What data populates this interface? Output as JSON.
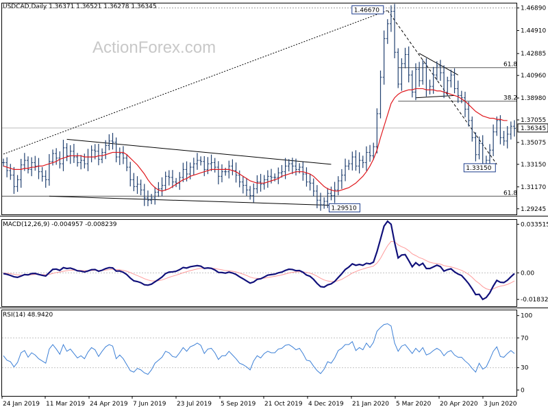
{
  "chart_data": {
    "type": "line",
    "watermark": "ActionForex.com",
    "price_panel": {
      "header": "USDCAD,Daily  1.36371 1.36521 1.36278 1.36345",
      "y_ticks": [
        "1.46890",
        "1.44910",
        "1.42885",
        "1.40960",
        "1.38980",
        "1.37055",
        "1.35075",
        "1.33150",
        "1.31170",
        "1.29245"
      ],
      "y_tick_values": [
        1.4689,
        1.4491,
        1.42885,
        1.4096,
        1.3898,
        1.37055,
        1.35075,
        1.3315,
        1.3117,
        1.29245
      ],
      "ylim": [
        1.2875,
        1.4735
      ],
      "last_price": "1.36345",
      "last_price_value": 1.36345,
      "high_label": "1.46670",
      "high_value": 1.4667,
      "low_label": "1.29510",
      "low_value": 1.2951,
      "recent_low_label": "1.33150",
      "recent_low_value": 1.3315,
      "fib_labels": [
        "61.8",
        "38.2",
        "61.8"
      ],
      "close_series": [
        1.333,
        1.326,
        1.322,
        1.312,
        1.318,
        1.331,
        1.335,
        1.327,
        1.333,
        1.33,
        1.325,
        1.321,
        1.318,
        1.334,
        1.341,
        1.337,
        1.332,
        1.346,
        1.339,
        1.343,
        1.338,
        1.333,
        1.335,
        1.332,
        1.338,
        1.344,
        1.343,
        1.336,
        1.342,
        1.348,
        1.352,
        1.351,
        1.338,
        1.341,
        1.337,
        1.329,
        1.318,
        1.312,
        1.314,
        1.309,
        1.302,
        1.3,
        1.302,
        1.307,
        1.31,
        1.313,
        1.321,
        1.32,
        1.316,
        1.315,
        1.32,
        1.327,
        1.323,
        1.329,
        1.332,
        1.335,
        1.334,
        1.327,
        1.332,
        1.333,
        1.329,
        1.321,
        1.325,
        1.325,
        1.33,
        1.326,
        1.322,
        1.316,
        1.313,
        1.309,
        1.304,
        1.31,
        1.316,
        1.314,
        1.318,
        1.321,
        1.32,
        1.32,
        1.324,
        1.325,
        1.33,
        1.332,
        1.33,
        1.327,
        1.329,
        1.323,
        1.316,
        1.315,
        1.308,
        1.3,
        1.296,
        1.299,
        1.306,
        1.304,
        1.309,
        1.317,
        1.322,
        1.33,
        1.332,
        1.338,
        1.33,
        1.335,
        1.333,
        1.342,
        1.339,
        1.347,
        1.376,
        1.408,
        1.442,
        1.455,
        1.466,
        1.43,
        1.402,
        1.42,
        1.428,
        1.41,
        1.395,
        1.415,
        1.405,
        1.42,
        1.397,
        1.4,
        1.41,
        1.418,
        1.412,
        1.395,
        1.405,
        1.41,
        1.398,
        1.392,
        1.39,
        1.38,
        1.37,
        1.355,
        1.34,
        1.35,
        1.332,
        1.335,
        1.344,
        1.36,
        1.37,
        1.355,
        1.352,
        1.358,
        1.365,
        1.363
      ],
      "ma_series": [
        1.33,
        1.329,
        1.328,
        1.327,
        1.327,
        1.327,
        1.328,
        1.328,
        1.329,
        1.329,
        1.33,
        1.33,
        1.331,
        1.332,
        1.333,
        1.334,
        1.336,
        1.337,
        1.338,
        1.339,
        1.339,
        1.339,
        1.339,
        1.338,
        1.338,
        1.338,
        1.338,
        1.339,
        1.339,
        1.34,
        1.341,
        1.342,
        1.342,
        1.342,
        1.342,
        1.34,
        1.337,
        1.334,
        1.331,
        1.327,
        1.323,
        1.318,
        1.314,
        1.311,
        1.309,
        1.308,
        1.309,
        1.31,
        1.312,
        1.314,
        1.316,
        1.318,
        1.319,
        1.321,
        1.322,
        1.323,
        1.324,
        1.325,
        1.326,
        1.327,
        1.327,
        1.327,
        1.327,
        1.327,
        1.327,
        1.326,
        1.325,
        1.323,
        1.321,
        1.319,
        1.317,
        1.316,
        1.315,
        1.315,
        1.315,
        1.316,
        1.317,
        1.318,
        1.319,
        1.321,
        1.322,
        1.323,
        1.324,
        1.325,
        1.325,
        1.325,
        1.324,
        1.323,
        1.321,
        1.318,
        1.315,
        1.312,
        1.31,
        1.309,
        1.308,
        1.308,
        1.309,
        1.31,
        1.311,
        1.313,
        1.315,
        1.318,
        1.321,
        1.325,
        1.33,
        1.336,
        1.344,
        1.355,
        1.365,
        1.375,
        1.385,
        1.39,
        1.393,
        1.395,
        1.396,
        1.397,
        1.397,
        1.398,
        1.398,
        1.398,
        1.397,
        1.397,
        1.397,
        1.396,
        1.396,
        1.395,
        1.394,
        1.393,
        1.392,
        1.391,
        1.389,
        1.387,
        1.384,
        1.381,
        1.378,
        1.376,
        1.374,
        1.373,
        1.372,
        1.372,
        1.371,
        1.371,
        1.37,
        1.37
      ],
      "trendlines": [
        {
          "from": [
            0,
            1.3405
          ],
          "to": [
            109,
            1.4667
          ],
          "style": "dotted"
        },
        {
          "from": [
            18,
            1.3535
          ],
          "to": [
            93,
            1.3315
          ],
          "style": "solid"
        },
        {
          "from": [
            13,
            1.3035
          ],
          "to": [
            97,
            1.2951
          ],
          "style": "solid"
        },
        {
          "from": [
            109,
            1.4667
          ],
          "to": [
            140,
            1.3315
          ],
          "style": "dashed"
        },
        {
          "from": [
            118,
            1.429
          ],
          "to": [
            129,
            1.41
          ],
          "style": "solid"
        },
        {
          "from": [
            117,
            1.39
          ],
          "to": [
            128,
            1.392
          ],
          "style": "solid"
        }
      ]
    },
    "macd_panel": {
      "header": "MACD(12,26,9) -0.004957 -0.008239",
      "y_ticks": [
        "0.033515",
        "0.00",
        "-0.018324"
      ],
      "y_tick_values": [
        0.033515,
        0.0,
        -0.018324
      ],
      "ylim": [
        -0.023,
        0.037
      ],
      "macd_series": [
        -0.0005,
        -0.001,
        -0.0018,
        -0.0027,
        -0.0031,
        -0.0022,
        -0.0012,
        -0.0014,
        -0.0005,
        -0.0004,
        -0.0011,
        -0.0017,
        -0.0022,
        0.0001,
        0.0024,
        0.0026,
        0.0017,
        0.0036,
        0.003,
        0.0033,
        0.0025,
        0.0014,
        0.0012,
        0.0006,
        0.0013,
        0.0022,
        0.0023,
        0.0011,
        0.0018,
        0.0029,
        0.0036,
        0.0034,
        0.0012,
        0.0013,
        0.0004,
        -0.0012,
        -0.0036,
        -0.0055,
        -0.006,
        -0.0068,
        -0.0082,
        -0.0085,
        -0.0078,
        -0.0062,
        -0.0046,
        -0.0029,
        -0.0005,
        0.0005,
        0.0007,
        0.0011,
        0.0022,
        0.0037,
        0.0033,
        0.0042,
        0.0046,
        0.005,
        0.0046,
        0.0031,
        0.0034,
        0.0031,
        0.002,
        0.0003,
        0.0002,
        -0.0002,
        0.0005,
        -0.0001,
        -0.0011,
        -0.0027,
        -0.0041,
        -0.0056,
        -0.0071,
        -0.0063,
        -0.0045,
        -0.0041,
        -0.0029,
        -0.0016,
        -0.0012,
        -0.0009,
        0.0,
        0.0005,
        0.0017,
        0.0025,
        0.0023,
        0.0015,
        0.0016,
        0.0004,
        -0.0015,
        -0.0024,
        -0.0045,
        -0.0073,
        -0.0095,
        -0.0098,
        -0.0083,
        -0.0076,
        -0.0059,
        -0.0032,
        -0.0006,
        0.0023,
        0.004,
        0.0062,
        0.0052,
        0.0058,
        0.0052,
        0.0066,
        0.0062,
        0.0074,
        0.0146,
        0.0233,
        0.0322,
        0.0356,
        0.0335,
        0.0209,
        0.0103,
        0.0123,
        0.0126,
        0.0085,
        0.0042,
        0.007,
        0.0051,
        0.0066,
        0.003,
        0.003,
        0.0041,
        0.0053,
        0.0043,
        0.0012,
        0.0022,
        0.0028,
        0.0007,
        -0.0008,
        -0.0018,
        -0.0045,
        -0.0074,
        -0.011,
        -0.015,
        -0.0148,
        -0.0183,
        -0.017,
        -0.0138,
        -0.0091,
        -0.0052,
        -0.0065,
        -0.0067,
        -0.0051,
        -0.0027,
        -0.0005
      ],
      "signal_series": [
        -0.0001,
        -0.0003,
        -0.0006,
        -0.001,
        -0.0014,
        -0.0016,
        -0.0015,
        -0.0015,
        -0.0013,
        -0.0011,
        -0.0011,
        -0.0012,
        -0.0014,
        -0.0011,
        -0.0004,
        0.0002,
        0.0005,
        0.0011,
        0.0015,
        0.0018,
        0.0019,
        0.0018,
        0.0017,
        0.0015,
        0.0015,
        0.0016,
        0.0018,
        0.0016,
        0.0017,
        0.0019,
        0.0022,
        0.0025,
        0.0022,
        0.0021,
        0.0017,
        0.0011,
        0.0002,
        -0.0009,
        -0.0019,
        -0.0029,
        -0.004,
        -0.0049,
        -0.0055,
        -0.0056,
        -0.0054,
        -0.0049,
        -0.004,
        -0.0031,
        -0.0023,
        -0.0016,
        -0.0008,
        0.0001,
        0.0008,
        0.0015,
        0.0021,
        0.0027,
        0.0031,
        0.0031,
        0.0032,
        0.0032,
        0.003,
        0.0025,
        0.0021,
        0.0016,
        0.0014,
        0.0011,
        0.0006,
        -0.0001,
        -0.0009,
        -0.0018,
        -0.0029,
        -0.0036,
        -0.0038,
        -0.0038,
        -0.0037,
        -0.0032,
        -0.0028,
        -0.0024,
        -0.0019,
        -0.0014,
        -0.0008,
        -0.0001,
        0.0004,
        0.0006,
        0.0008,
        0.0007,
        0.0003,
        -0.0002,
        -0.0011,
        -0.0023,
        -0.0037,
        -0.0049,
        -0.0056,
        -0.006,
        -0.006,
        -0.0054,
        -0.0045,
        -0.0031,
        -0.0017,
        -0.0001,
        0.0009,
        0.0019,
        0.0026,
        0.0034,
        0.004,
        0.0047,
        0.0067,
        0.01,
        0.0145,
        0.0187,
        0.0217,
        0.0215,
        0.0193,
        0.018,
        0.017,
        0.0153,
        0.0131,
        0.0119,
        0.0105,
        0.0097,
        0.0084,
        0.0073,
        0.0067,
        0.0064,
        0.006,
        0.005,
        0.0045,
        0.0041,
        0.0034,
        0.0026,
        0.0017,
        0.0005,
        -0.0011,
        -0.0031,
        -0.0055,
        -0.0073,
        -0.0095,
        -0.011,
        -0.0116,
        -0.0111,
        -0.0099,
        -0.0092,
        -0.0087,
        -0.008,
        -0.0069,
        -0.0056
      ]
    },
    "rsi_panel": {
      "header": "RSI(14) 48.9420",
      "y_ticks": [
        "100",
        "70",
        "30",
        "0"
      ],
      "y_tick_values": [
        100,
        70,
        30,
        0
      ],
      "levels": [
        70,
        30
      ],
      "ylim": [
        0,
        100
      ],
      "rsi_series": [
        46,
        40,
        38,
        31,
        37,
        50,
        53,
        44,
        50,
        47,
        42,
        39,
        36,
        55,
        61,
        55,
        48,
        61,
        52,
        55,
        49,
        43,
        46,
        42,
        51,
        57,
        54,
        45,
        52,
        58,
        61,
        59,
        42,
        47,
        42,
        34,
        26,
        24,
        29,
        27,
        23,
        21,
        27,
        36,
        40,
        44,
        52,
        50,
        45,
        44,
        50,
        57,
        52,
        58,
        60,
        63,
        60,
        49,
        55,
        56,
        50,
        41,
        46,
        46,
        52,
        47,
        42,
        36,
        34,
        31,
        27,
        39,
        46,
        43,
        49,
        52,
        50,
        50,
        55,
        56,
        60,
        61,
        58,
        54,
        56,
        49,
        40,
        39,
        32,
        26,
        22,
        28,
        38,
        36,
        43,
        53,
        56,
        61,
        61,
        65,
        53,
        57,
        54,
        63,
        57,
        64,
        79,
        84,
        88,
        89,
        86,
        63,
        52,
        59,
        61,
        55,
        49,
        56,
        51,
        57,
        47,
        49,
        53,
        56,
        53,
        46,
        51,
        53,
        47,
        44,
        44,
        39,
        35,
        29,
        24,
        36,
        28,
        31,
        41,
        52,
        58,
        45,
        44,
        49,
        53,
        49
      ]
    },
    "x_labels": [
      "24 Jan 2019",
      "11 Mar 2019",
      "24 Apr 2019",
      "7 Jun 2019",
      "23 Jul 2019",
      "5 Sep 2019",
      "21 Oct 2019",
      "4 Dec 2019",
      "21 Jan 2020",
      "5 Mar 2020",
      "20 Apr 2020",
      "3 Jun 2020"
    ],
    "colors": {
      "bars": "#1f3f6f",
      "ma": "#e0161b",
      "macd": "#10107a",
      "signal": "#ff9a9a",
      "rsi": "#3b7fd6",
      "grid": "#c0c0c0",
      "dotted_level": "#b0b0b0"
    }
  }
}
